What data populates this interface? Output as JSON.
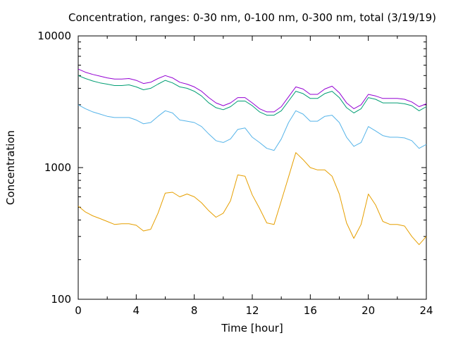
{
  "chart_data": {
    "type": "line",
    "title": "Concentration, ranges: 0-30 nm, 0-100 nm, 0-300 nm, total (3/19/19)",
    "xlabel": "Time [hour]",
    "ylabel": "Concentration",
    "xlim": [
      0,
      24
    ],
    "ylim": [
      100,
      10000
    ],
    "yscale": "log",
    "grid": false,
    "legend": "none",
    "x_ticks": [
      "0",
      "4",
      "8",
      "12",
      "16",
      "20",
      "24"
    ],
    "y_ticks": [
      "100",
      "1000",
      "10000"
    ],
    "x": [
      0,
      0.5,
      1,
      1.5,
      2,
      2.5,
      3,
      3.5,
      4,
      4.5,
      5,
      5.5,
      6,
      6.5,
      7,
      7.5,
      8,
      8.5,
      9,
      9.5,
      10,
      10.5,
      11,
      11.5,
      12,
      12.5,
      13,
      13.5,
      14,
      14.5,
      15,
      15.5,
      16,
      16.5,
      17,
      17.5,
      18,
      18.5,
      19,
      19.5,
      20,
      20.5,
      21,
      21.5,
      22,
      22.5,
      23,
      23.5,
      24
    ],
    "series": [
      {
        "color": "#e69f00",
        "values": [
          510,
          460,
          430,
          410,
          390,
          370,
          375,
          375,
          365,
          330,
          340,
          450,
          640,
          650,
          600,
          630,
          600,
          540,
          470,
          420,
          450,
          560,
          880,
          860,
          620,
          490,
          380,
          370,
          560,
          850,
          1300,
          1150,
          1000,
          960,
          960,
          860,
          630,
          380,
          290,
          370,
          630,
          520,
          390,
          370,
          370,
          360,
          300,
          260,
          300
        ]
      },
      {
        "color": "#56b4e9",
        "values": [
          3000,
          2800,
          2650,
          2550,
          2450,
          2400,
          2400,
          2400,
          2300,
          2150,
          2200,
          2450,
          2700,
          2600,
          2300,
          2250,
          2200,
          2050,
          1800,
          1600,
          1550,
          1650,
          1950,
          2000,
          1700,
          1550,
          1400,
          1350,
          1650,
          2200,
          2700,
          2550,
          2250,
          2250,
          2450,
          2500,
          2200,
          1700,
          1450,
          1550,
          2050,
          1900,
          1750,
          1700,
          1700,
          1680,
          1600,
          1400,
          1500
        ]
      },
      {
        "color": "#009e73",
        "values": [
          5000,
          4750,
          4550,
          4400,
          4300,
          4200,
          4200,
          4250,
          4100,
          3900,
          4000,
          4300,
          4600,
          4400,
          4100,
          4000,
          3800,
          3500,
          3100,
          2850,
          2750,
          2900,
          3200,
          3200,
          2950,
          2650,
          2500,
          2500,
          2700,
          3200,
          3800,
          3650,
          3350,
          3350,
          3650,
          3800,
          3400,
          2850,
          2600,
          2800,
          3400,
          3300,
          3100,
          3100,
          3100,
          3050,
          2950,
          2700,
          2900
        ]
      },
      {
        "color": "#9400d3",
        "values": [
          5600,
          5300,
          5100,
          4950,
          4800,
          4700,
          4700,
          4750,
          4600,
          4350,
          4450,
          4750,
          5000,
          4800,
          4450,
          4300,
          4100,
          3800,
          3400,
          3100,
          2950,
          3100,
          3400,
          3400,
          3100,
          2800,
          2650,
          2650,
          2900,
          3450,
          4100,
          3950,
          3600,
          3600,
          3950,
          4150,
          3700,
          3100,
          2800,
          3000,
          3600,
          3500,
          3350,
          3350,
          3350,
          3300,
          3150,
          2900,
          3050
        ]
      }
    ]
  }
}
